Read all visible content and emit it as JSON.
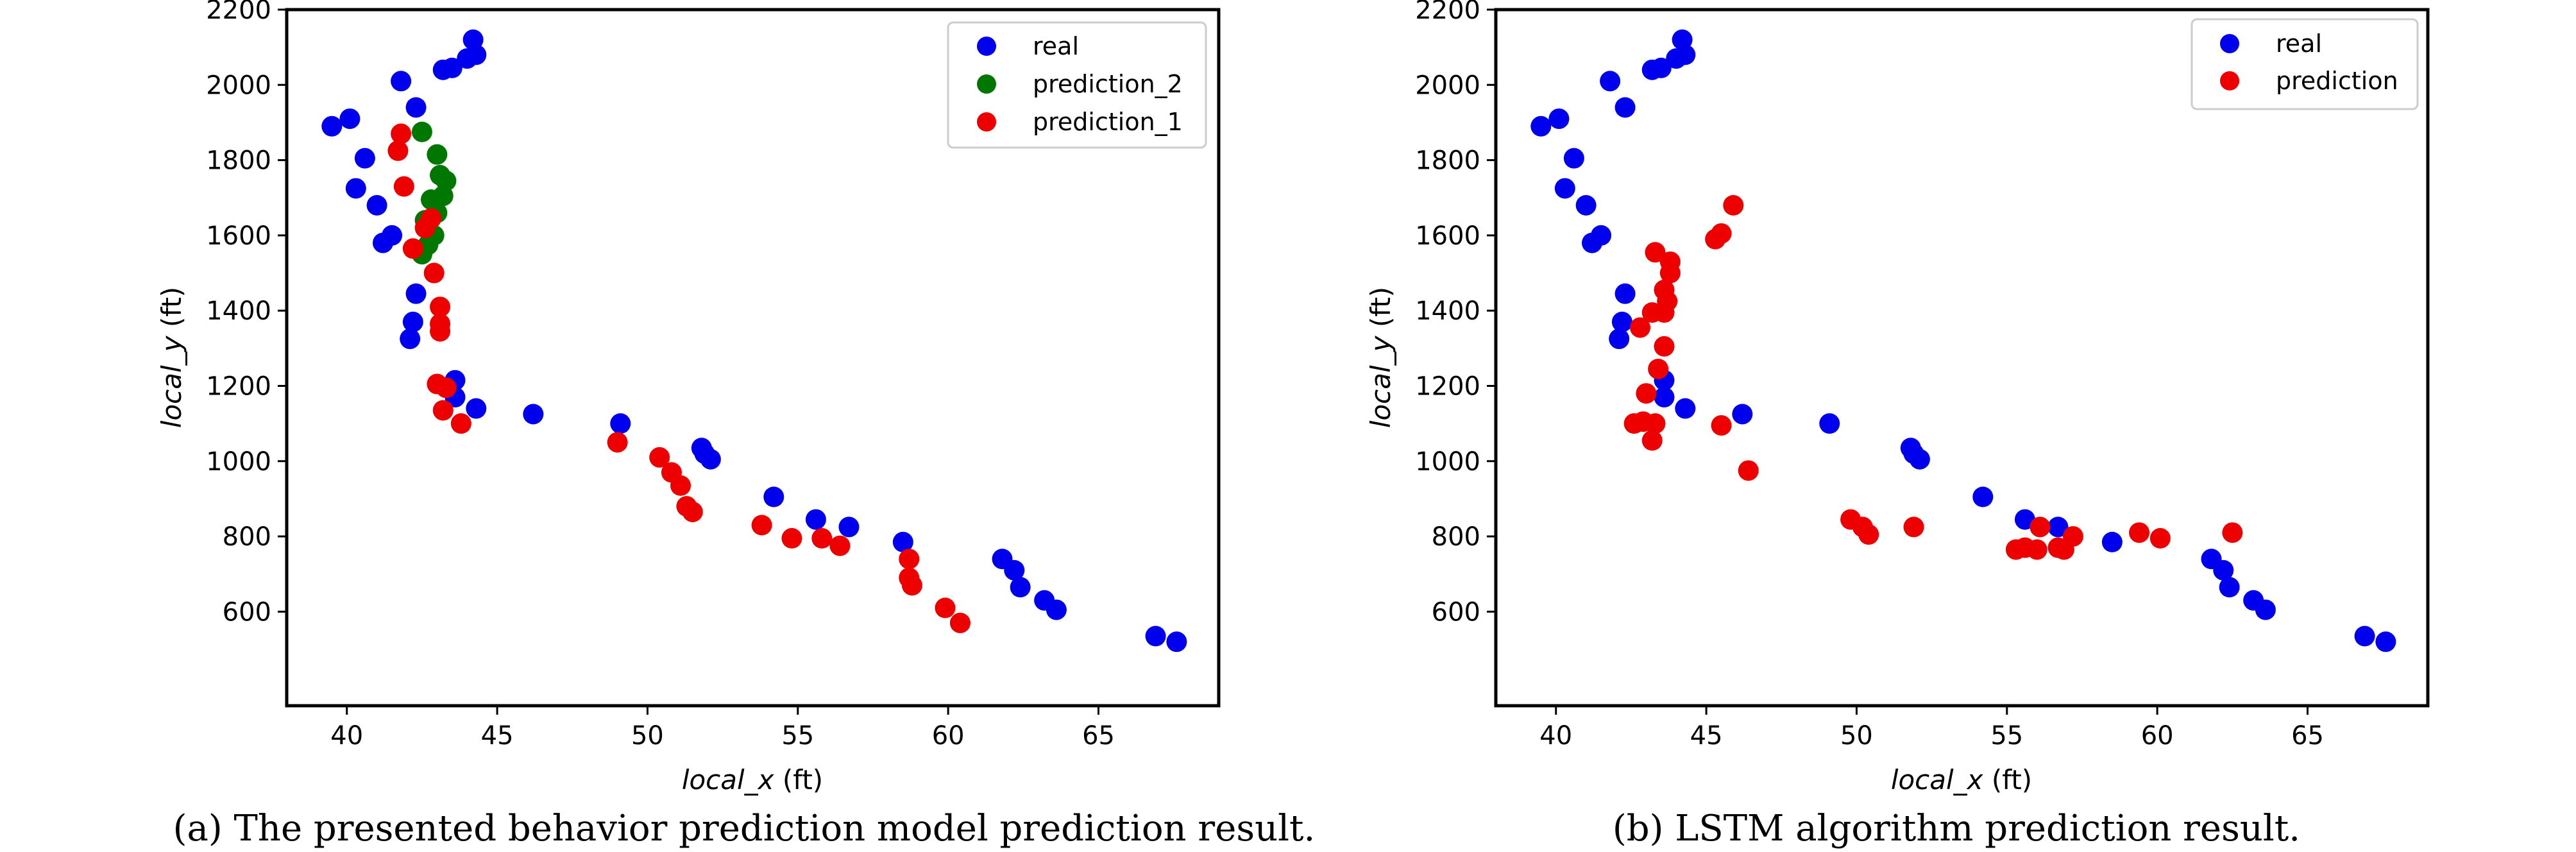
{
  "colors": {
    "real": "#0000ee",
    "prediction_1": "#ee0000",
    "prediction_2": "#007700",
    "prediction": "#ee0000"
  },
  "chart_data": [
    {
      "type": "scatter",
      "caption": "(a) The presented behavior prediction model prediction result.",
      "xlabel_main": "local_x",
      "xlabel_unit": "(ft)",
      "ylabel_main": "local_y",
      "ylabel_unit": "(ft)",
      "xlim": [
        38,
        69
      ],
      "ylim": [
        350,
        2200
      ],
      "xticks": [
        "40",
        "45",
        "50",
        "55",
        "60",
        "65"
      ],
      "yticks": [
        "600",
        "800",
        "1000",
        "1200",
        "1400",
        "1600",
        "1800",
        "2000",
        "2200"
      ],
      "legend_position": "top-right",
      "series": [
        {
          "name": "real",
          "color_key": "real",
          "points": [
            [
              39.5,
              1890
            ],
            [
              40.1,
              1910
            ],
            [
              40.6,
              1805
            ],
            [
              40.3,
              1725
            ],
            [
              41.0,
              1680
            ],
            [
              41.2,
              1580
            ],
            [
              41.5,
              1600
            ],
            [
              41.8,
              2010
            ],
            [
              42.3,
              1940
            ],
            [
              43.2,
              2040
            ],
            [
              43.5,
              2045
            ],
            [
              44.0,
              2070
            ],
            [
              44.3,
              2080
            ],
            [
              44.2,
              2120
            ],
            [
              42.3,
              1445
            ],
            [
              42.2,
              1370
            ],
            [
              42.1,
              1325
            ],
            [
              43.6,
              1215
            ],
            [
              43.6,
              1170
            ],
            [
              44.3,
              1140
            ],
            [
              46.2,
              1125
            ],
            [
              49.1,
              1100
            ],
            [
              51.8,
              1035
            ],
            [
              51.9,
              1020
            ],
            [
              52.1,
              1005
            ],
            [
              54.2,
              905
            ],
            [
              55.6,
              845
            ],
            [
              56.7,
              825
            ],
            [
              58.5,
              785
            ],
            [
              61.8,
              740
            ],
            [
              62.2,
              710
            ],
            [
              62.4,
              665
            ],
            [
              63.2,
              630
            ],
            [
              63.6,
              605
            ],
            [
              66.9,
              535
            ],
            [
              67.6,
              520
            ]
          ]
        },
        {
          "name": "prediction_2",
          "color_key": "prediction_2",
          "points": [
            [
              42.5,
              1875
            ],
            [
              43.0,
              1815
            ],
            [
              43.1,
              1760
            ],
            [
              43.3,
              1745
            ],
            [
              43.2,
              1705
            ],
            [
              42.8,
              1695
            ],
            [
              43.0,
              1660
            ],
            [
              42.6,
              1640
            ],
            [
              42.9,
              1600
            ],
            [
              42.7,
              1575
            ],
            [
              42.5,
              1550
            ]
          ]
        },
        {
          "name": "prediction_1",
          "color_key": "prediction_1",
          "points": [
            [
              41.8,
              1870
            ],
            [
              41.7,
              1825
            ],
            [
              41.9,
              1730
            ],
            [
              42.6,
              1620
            ],
            [
              42.8,
              1645
            ],
            [
              42.2,
              1565
            ],
            [
              42.9,
              1500
            ],
            [
              43.1,
              1410
            ],
            [
              43.1,
              1365
            ],
            [
              43.1,
              1345
            ],
            [
              43.0,
              1205
            ],
            [
              43.3,
              1195
            ],
            [
              43.2,
              1135
            ],
            [
              43.8,
              1100
            ],
            [
              49.0,
              1050
            ],
            [
              50.4,
              1010
            ],
            [
              50.8,
              970
            ],
            [
              51.1,
              935
            ],
            [
              51.3,
              880
            ],
            [
              51.5,
              865
            ],
            [
              53.8,
              830
            ],
            [
              54.8,
              795
            ],
            [
              55.8,
              795
            ],
            [
              56.4,
              775
            ],
            [
              58.7,
              740
            ],
            [
              58.7,
              690
            ],
            [
              58.8,
              670
            ],
            [
              59.9,
              610
            ],
            [
              60.4,
              570
            ]
          ]
        }
      ]
    },
    {
      "type": "scatter",
      "caption": "(b) LSTM algorithm prediction result.",
      "xlabel_main": "local_x",
      "xlabel_unit": "(ft)",
      "ylabel_main": "local_y",
      "ylabel_unit": "(ft)",
      "xlim": [
        38,
        69
      ],
      "ylim": [
        350,
        2200
      ],
      "xticks": [
        "40",
        "45",
        "50",
        "55",
        "60",
        "65"
      ],
      "yticks": [
        "600",
        "800",
        "1000",
        "1200",
        "1400",
        "1600",
        "1800",
        "2000",
        "2200"
      ],
      "legend_position": "top-right",
      "series": [
        {
          "name": "real",
          "color_key": "real",
          "points": [
            [
              39.5,
              1890
            ],
            [
              40.1,
              1910
            ],
            [
              40.6,
              1805
            ],
            [
              40.3,
              1725
            ],
            [
              41.0,
              1680
            ],
            [
              41.2,
              1580
            ],
            [
              41.5,
              1600
            ],
            [
              41.8,
              2010
            ],
            [
              42.3,
              1940
            ],
            [
              43.2,
              2040
            ],
            [
              43.5,
              2045
            ],
            [
              44.0,
              2070
            ],
            [
              44.3,
              2080
            ],
            [
              44.2,
              2120
            ],
            [
              42.3,
              1445
            ],
            [
              42.2,
              1370
            ],
            [
              42.1,
              1325
            ],
            [
              43.6,
              1215
            ],
            [
              43.6,
              1170
            ],
            [
              44.3,
              1140
            ],
            [
              46.2,
              1125
            ],
            [
              49.1,
              1100
            ],
            [
              51.8,
              1035
            ],
            [
              51.9,
              1020
            ],
            [
              52.1,
              1005
            ],
            [
              54.2,
              905
            ],
            [
              55.6,
              845
            ],
            [
              56.7,
              825
            ],
            [
              58.5,
              785
            ],
            [
              61.8,
              740
            ],
            [
              62.2,
              710
            ],
            [
              62.4,
              665
            ],
            [
              63.2,
              630
            ],
            [
              63.6,
              605
            ],
            [
              66.9,
              535
            ],
            [
              67.6,
              520
            ]
          ]
        },
        {
          "name": "prediction",
          "color_key": "prediction",
          "points": [
            [
              45.9,
              1680
            ],
            [
              45.5,
              1605
            ],
            [
              45.3,
              1590
            ],
            [
              43.3,
              1555
            ],
            [
              43.8,
              1530
            ],
            [
              43.8,
              1500
            ],
            [
              43.6,
              1455
            ],
            [
              43.7,
              1425
            ],
            [
              43.2,
              1395
            ],
            [
              43.6,
              1395
            ],
            [
              42.8,
              1355
            ],
            [
              43.6,
              1305
            ],
            [
              43.4,
              1245
            ],
            [
              43.0,
              1180
            ],
            [
              42.6,
              1100
            ],
            [
              42.9,
              1105
            ],
            [
              43.3,
              1100
            ],
            [
              43.2,
              1055
            ],
            [
              45.5,
              1095
            ],
            [
              46.4,
              975
            ],
            [
              49.8,
              845
            ],
            [
              50.2,
              825
            ],
            [
              50.4,
              805
            ],
            [
              51.9,
              825
            ],
            [
              55.3,
              765
            ],
            [
              55.6,
              770
            ],
            [
              56.0,
              765
            ],
            [
              56.1,
              825
            ],
            [
              56.7,
              770
            ],
            [
              56.9,
              765
            ],
            [
              57.2,
              800
            ],
            [
              59.4,
              810
            ],
            [
              60.1,
              795
            ],
            [
              62.5,
              810
            ]
          ]
        }
      ]
    }
  ]
}
